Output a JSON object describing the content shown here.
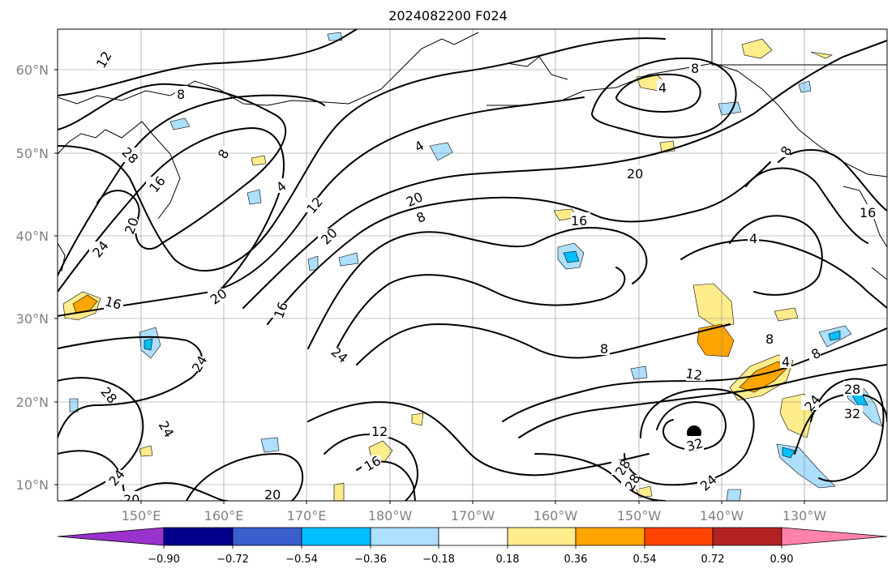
{
  "title": "2024082200 F024",
  "map": {
    "lat_labels": [
      "60°N",
      "50°N",
      "40°N",
      "30°N",
      "20°N",
      "10°N"
    ],
    "lon_labels": [
      "150°E",
      "160°E",
      "170°E",
      "180°W",
      "170°W",
      "160°W",
      "150°W",
      "140°W",
      "130°W"
    ],
    "contour_labels": [
      "12",
      "8",
      "28",
      "16",
      "24",
      "20",
      "4",
      "12",
      "20",
      "16",
      "20",
      "8",
      "20",
      "16",
      "4",
      "8",
      "4",
      "8",
      "20",
      "16",
      "12",
      "16",
      "24",
      "28",
      "24",
      "8",
      "12",
      "8",
      "4",
      "8",
      "28",
      "32",
      "24",
      "12",
      "16",
      "28",
      "32",
      "28",
      "24",
      "20",
      "20",
      "16"
    ],
    "marker": "storm-center",
    "shade_colors": {
      "neg_strong": "#00bfff",
      "neg_weak": "#addfff",
      "pos_weak": "#ffec8b",
      "pos_mid": "#ffa500"
    }
  },
  "colorbar": {
    "ticks": [
      "−0.90",
      "−0.72",
      "−0.54",
      "−0.36",
      "−0.18",
      "0.18",
      "0.36",
      "0.54",
      "0.72",
      "0.90"
    ],
    "colors": [
      "#9a32cd",
      "#00008b",
      "#3a5fcd",
      "#00bfff",
      "#addfff",
      "#ffffff",
      "#ffec8b",
      "#ffa500",
      "#ff4500",
      "#b22222",
      "#ff82ab"
    ]
  }
}
